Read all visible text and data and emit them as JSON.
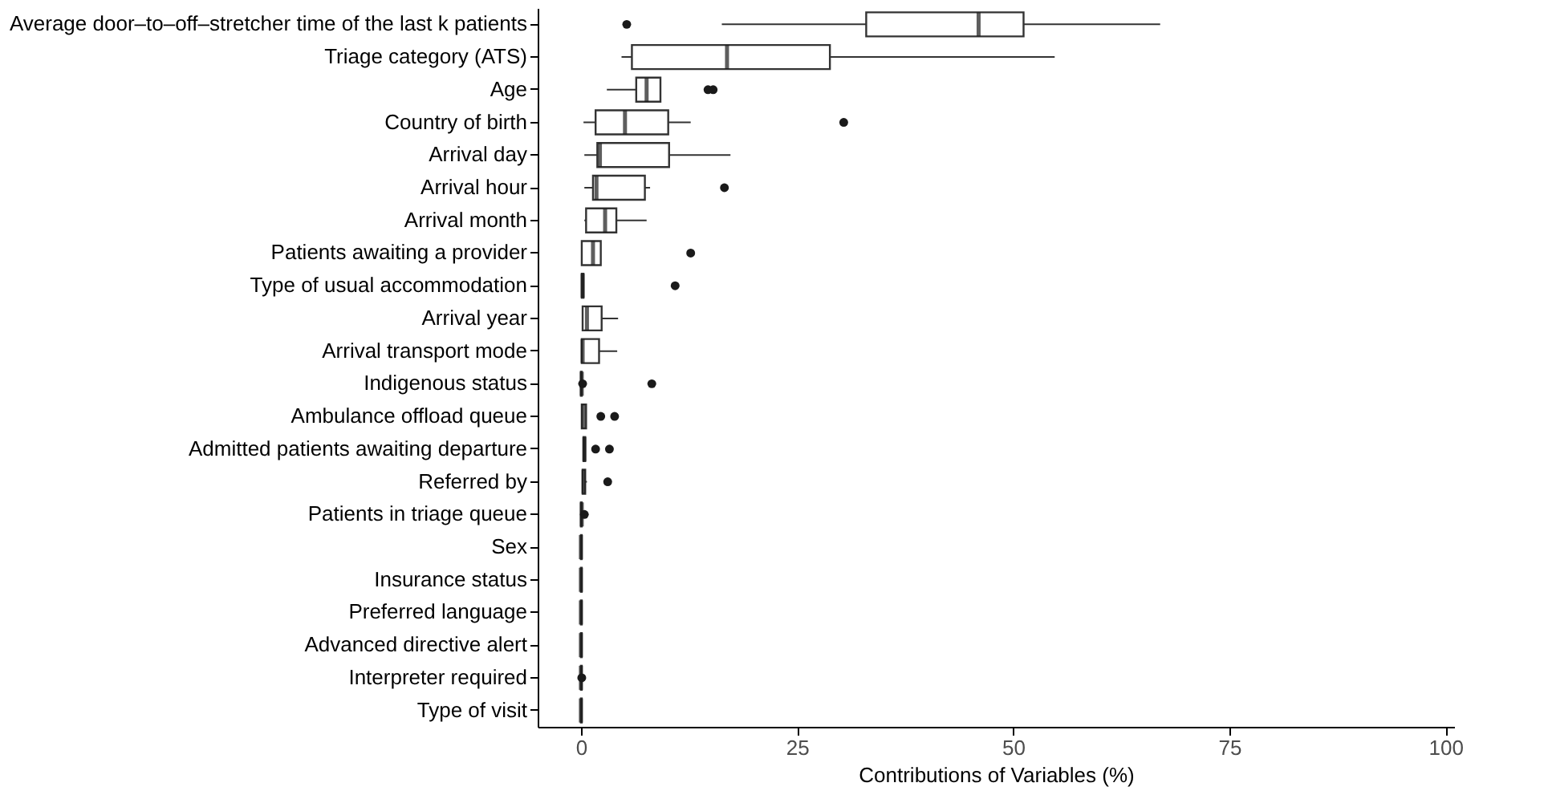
{
  "chart_data": {
    "type": "box",
    "orientation": "horizontal",
    "xlabel": "Contributions of Variables (%)",
    "xlim": [
      -5,
      101
    ],
    "xticks": [
      0,
      25,
      50,
      75,
      100
    ],
    "categories": [
      "Average door–to–off–stretcher time of the last k patients",
      "Triage category (ATS)",
      "Age",
      "Country of birth",
      "Arrival day",
      "Arrival hour",
      "Arrival month",
      "Patients awaiting a provider",
      "Type of usual accommodation",
      "Arrival year",
      "Arrival transport mode",
      "Indigenous status",
      "Ambulance offload queue",
      "Admitted patients awaiting departure",
      "Referred by",
      "Patients in triage queue",
      "Sex",
      "Insurance status",
      "Preferred language",
      "Advanced directive alert",
      "Interpreter required",
      "Type of visit"
    ],
    "boxes": [
      {
        "low": 16.3,
        "q1": 33.0,
        "median": 46.0,
        "q3": 51.2,
        "high": 67.0,
        "outliers": [
          5.3
        ]
      },
      {
        "low": 4.7,
        "q1": 5.9,
        "median": 16.9,
        "q3": 28.8,
        "high": 54.8
      },
      {
        "low": 3.0,
        "q1": 6.4,
        "median": 7.6,
        "q3": 9.2,
        "high": 9.2,
        "outliers": [
          14.7,
          15.3
        ]
      },
      {
        "low": 0.3,
        "q1": 1.7,
        "median": 5.1,
        "q3": 10.1,
        "high": 12.7,
        "outliers": [
          30.4
        ]
      },
      {
        "low": 0.4,
        "q1": 1.9,
        "median": 2.2,
        "q3": 10.2,
        "high": 17.3
      },
      {
        "low": 0.4,
        "q1": 1.4,
        "median": 1.8,
        "q3": 7.4,
        "high": 8.0,
        "outliers": [
          16.6
        ]
      },
      {
        "low": 0.4,
        "q1": 0.6,
        "median": 2.8,
        "q3": 4.1,
        "high": 7.6
      },
      {
        "low": 0.1,
        "q1": 0.1,
        "median": 1.4,
        "q3": 2.3,
        "high": 2.3,
        "outliers": [
          12.7
        ]
      },
      {
        "low": 0.1,
        "q1": 0.1,
        "median": 0.2,
        "q3": 0.3,
        "high": 0.3,
        "outliers": [
          10.9
        ]
      },
      {
        "low": 0.2,
        "q1": 0.2,
        "median": 0.7,
        "q3": 2.4,
        "high": 4.3
      },
      {
        "low": 0.1,
        "q1": 0.1,
        "median": 0.2,
        "q3": 2.1,
        "high": 4.2
      },
      {
        "low": 0.0,
        "q1": 0.0,
        "median": 0.1,
        "q3": 0.1,
        "high": 0.1,
        "outliers": [
          0.2,
          8.2
        ]
      },
      {
        "low": 0.1,
        "q1": 0.1,
        "median": 0.3,
        "q3": 0.6,
        "high": 0.6,
        "outliers": [
          2.3,
          3.9
        ]
      },
      {
        "low": 0.3,
        "q1": 0.3,
        "median": 0.4,
        "q3": 0.5,
        "high": 0.5,
        "outliers": [
          1.7,
          3.3
        ]
      },
      {
        "low": 0.2,
        "q1": 0.2,
        "median": 0.3,
        "q3": 0.5,
        "high": 0.7,
        "outliers": [
          3.1
        ]
      },
      {
        "low": 0.0,
        "q1": 0.0,
        "median": 0.1,
        "q3": 0.1,
        "high": 0.1,
        "outliers": [
          0.4
        ]
      },
      {
        "low": 0.0,
        "q1": 0.0,
        "median": 0.0,
        "q3": 0.1,
        "high": 0.1
      },
      {
        "low": 0.0,
        "q1": 0.0,
        "median": 0.0,
        "q3": 0.1,
        "high": 0.1
      },
      {
        "low": 0.0,
        "q1": 0.0,
        "median": 0.0,
        "q3": 0.1,
        "high": 0.1
      },
      {
        "low": 0.0,
        "q1": 0.0,
        "median": 0.0,
        "q3": 0.1,
        "high": 0.1
      },
      {
        "low": 0.0,
        "q1": 0.0,
        "median": 0.0,
        "q3": 0.1,
        "high": 0.1,
        "outliers": [
          0.1
        ]
      },
      {
        "low": 0.0,
        "q1": 0.0,
        "median": 0.0,
        "q3": 0.1,
        "high": 0.1
      }
    ]
  }
}
